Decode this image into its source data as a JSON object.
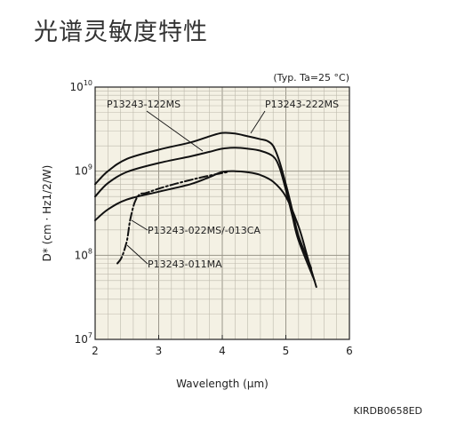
{
  "page": {
    "title": "光谱灵敏度特性",
    "figure_code": "KIRDB0658ED"
  },
  "chart_data": {
    "type": "line",
    "title": "",
    "condition_note": "(Typ. Ta=25 °C)",
    "xlabel": "Wavelength (μm)",
    "ylabel": "D* (cm · Hz1/2/W)",
    "xlim": [
      2,
      6
    ],
    "ylim": [
      10000000,
      10000000000
    ],
    "yscale": "log",
    "grid": true,
    "background_color": "#f4f1e4",
    "x_ticks": [
      "2",
      "3",
      "4",
      "5",
      "6"
    ],
    "y_ticks": [
      {
        "base": "10",
        "exp": "7"
      },
      {
        "base": "10",
        "exp": "8"
      },
      {
        "base": "10",
        "exp": "9"
      },
      {
        "base": "10",
        "exp": "10"
      }
    ],
    "series": [
      {
        "name": "P13243-122MS",
        "style": "solid",
        "x": [
          2.0,
          2.2,
          2.5,
          3.0,
          3.5,
          3.8,
          4.0,
          4.2,
          4.4,
          4.6,
          4.8,
          5.0,
          5.2,
          5.35,
          5.48
        ],
        "y": [
          260000000.0,
          350000000.0,
          460000000.0,
          570000000.0,
          700000000.0,
          850000000.0,
          980000000.0,
          1000000000.0,
          970000000.0,
          900000000.0,
          750000000.0,
          500000000.0,
          220000000.0,
          90000000.0,
          42000000.0
        ]
      },
      {
        "name": "P13243-222MS",
        "style": "solid",
        "x": [
          2.0,
          2.2,
          2.5,
          3.0,
          3.5,
          3.8,
          4.0,
          4.2,
          4.4,
          4.6,
          4.7,
          4.8,
          4.9,
          5.0,
          5.1,
          5.2,
          5.4
        ],
        "y": [
          700000000.0,
          1000000000.0,
          1400000000.0,
          1800000000.0,
          2200000000.0,
          2600000000.0,
          2850000000.0,
          2800000000.0,
          2600000000.0,
          2400000000.0,
          2300000000.0,
          2000000000.0,
          1300000000.0,
          700000000.0,
          350000000.0,
          170000000.0,
          70000000.0
        ]
      },
      {
        "name": "P13243-022MS/-013CA",
        "style": "solid",
        "x": [
          2.0,
          2.2,
          2.5,
          3.0,
          3.5,
          3.8,
          4.0,
          4.2,
          4.4,
          4.6,
          4.8,
          4.9,
          5.0,
          5.1,
          5.2,
          5.45
        ],
        "y": [
          500000000.0,
          720000000.0,
          980000000.0,
          1250000000.0,
          1500000000.0,
          1700000000.0,
          1850000000.0,
          1900000000.0,
          1850000000.0,
          1750000000.0,
          1500000000.0,
          1100000000.0,
          600000000.0,
          300000000.0,
          150000000.0,
          50000000.0
        ]
      },
      {
        "name": "P13243-011MA",
        "style": "dashdot",
        "x": [
          2.35,
          2.42,
          2.5,
          2.55,
          2.62,
          2.7,
          2.8,
          3.0,
          3.3,
          3.6,
          3.9,
          4.1
        ],
        "y": [
          80000000.0,
          95000000.0,
          150000000.0,
          260000000.0,
          420000000.0,
          530000000.0,
          550000000.0,
          620000000.0,
          720000000.0,
          820000000.0,
          920000000.0,
          980000000.0
        ]
      }
    ],
    "labels": [
      {
        "text": "P13243-122MS"
      },
      {
        "text": "P13243-222MS"
      },
      {
        "text": "P13243-022MS/-013CA"
      },
      {
        "text": "P13243-011MA"
      }
    ]
  }
}
